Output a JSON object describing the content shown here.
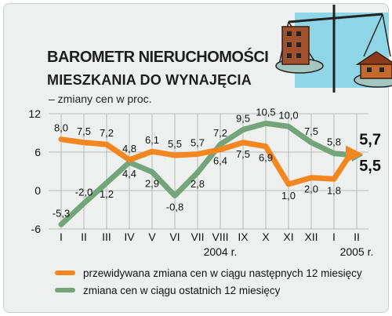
{
  "header": {
    "title": "BAROMETR NIERUCHOMOŚCI",
    "subtitle": "MIESZKANIA DO WYNAJĘCIA",
    "unit": "– zmiany cen w proc."
  },
  "colors": {
    "orange": "#f3861f",
    "green": "#74a57a",
    "frame": "#eef0ef"
  },
  "illustration": "buildings-on-scale-icon",
  "chart_data": {
    "type": "line",
    "categories": [
      "I",
      "II",
      "III",
      "IV",
      "V",
      "VI",
      "VII",
      "VIII",
      "IX",
      "X",
      "XI",
      "XII",
      "I",
      "II"
    ],
    "year_labels": [
      {
        "text": "2004 r.",
        "at": "VIII"
      },
      {
        "text": "2005 r.",
        "at": "II"
      }
    ],
    "ylim": [
      -6,
      12
    ],
    "yticks": [
      -6,
      0,
      6,
      12
    ],
    "grid": true,
    "series": [
      {
        "name": "przewidywana zmiana cen w ciągu następnych 12 miesięcy",
        "color": "#f3861f",
        "values": [
          8.0,
          7.5,
          7.2,
          4.8,
          6.1,
          5.5,
          5.7,
          6.4,
          7.5,
          6.9,
          1.0,
          2.0,
          1.8,
          5.7
        ],
        "labels": [
          "8,0",
          "7,5",
          "7,2",
          "4,8",
          "6,1",
          "5,5",
          "5,7",
          "6,4",
          "7,5",
          "6,9",
          "1,0",
          "2,0",
          "1,8",
          "5,7"
        ],
        "label_pos": [
          "above",
          "above",
          "above",
          "above",
          "above",
          "above",
          "above",
          "below",
          "below",
          "below",
          "below",
          "below",
          "below",
          "end"
        ]
      },
      {
        "name": "zmiana cen w ciągu ostatnich 12 miesięcy",
        "color": "#74a57a",
        "values": [
          -5.3,
          -2.0,
          1.2,
          4.4,
          2.9,
          -0.8,
          2.8,
          7.2,
          9.5,
          10.5,
          10.0,
          7.5,
          5.8,
          5.5
        ],
        "labels": [
          "-5,3",
          "-2,0",
          "1,2",
          "4,4",
          "2,9",
          "-0,8",
          "2,8",
          "7,2",
          "9,5",
          "10,5",
          "10,0",
          "7,5",
          "5,8",
          "5,5"
        ],
        "label_pos": [
          "above",
          "above",
          "below",
          "below",
          "below",
          "below",
          "below",
          "above",
          "above",
          "above",
          "above",
          "above",
          "above",
          "end"
        ]
      }
    ]
  }
}
